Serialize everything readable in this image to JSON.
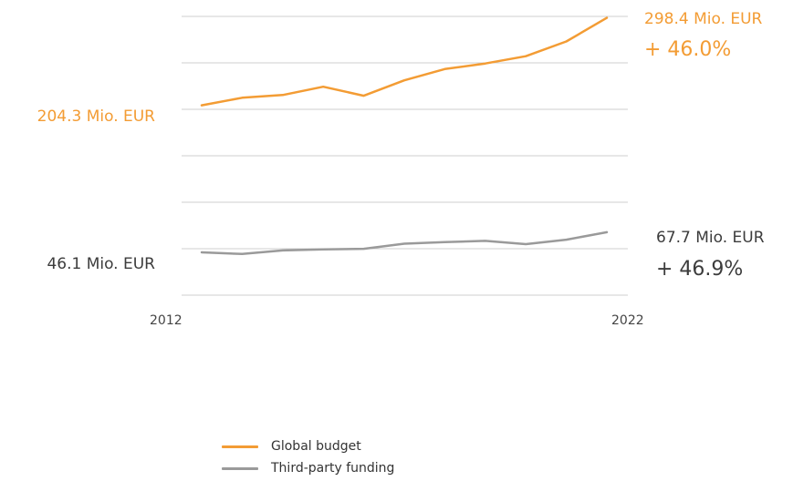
{
  "colors": {
    "global": "#f39c34",
    "third": "#9a9a9a",
    "grid": "#cfcfcf",
    "text_dark": "#3c3c3c"
  },
  "chart_data": {
    "type": "line",
    "x": [
      2012,
      2013,
      2014,
      2015,
      2016,
      2017,
      2018,
      2019,
      2020,
      2021,
      2022
    ],
    "x_tick_labels": [
      "2012",
      "2022"
    ],
    "ylim": [
      0,
      300
    ],
    "grid": true,
    "series": [
      {
        "name": "Global budget",
        "color": "#f39c34",
        "values": [
          204.3,
          212.5,
          215.4,
          224.3,
          214.6,
          231.2,
          243.3,
          249.3,
          257.2,
          273.0,
          298.4
        ],
        "start_label": "204.3 Mio. EUR",
        "end_label": "298.4 Mio. EUR",
        "change_label": "+ 46.0%"
      },
      {
        "name": "Third-party funding",
        "color": "#9a9a9a",
        "values": [
          46.1,
          44.3,
          48.1,
          49.2,
          49.9,
          55.4,
          57.2,
          58.4,
          54.9,
          59.7,
          67.7
        ],
        "start_label": "46.1 Mio. EUR",
        "end_label": "67.7 Mio. EUR",
        "change_label": "+ 46.9%"
      }
    ],
    "legend": "bottom-center"
  }
}
